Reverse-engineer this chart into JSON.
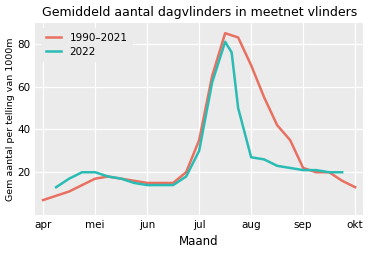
{
  "title": "Gemiddeld aantal dagvlinders in meetnet vlinders",
  "xlabel": "Maand",
  "ylabel": "Gem aantal per telling van 1000m",
  "x_labels": [
    "apr",
    "mei",
    "jun",
    "jul",
    "aug",
    "sep",
    "okt"
  ],
  "x_ticks": [
    0,
    2,
    4,
    6,
    8,
    10,
    12
  ],
  "ylim": [
    0,
    90
  ],
  "yticks": [
    20,
    40,
    60,
    80
  ],
  "background_color": "#ebebeb",
  "line_1990_color": "#E87060",
  "line_2022_color": "#2ABCB4",
  "line_width": 1.8,
  "series_1990": {
    "label": "1990–2021",
    "x": [
      0,
      0.5,
      1,
      1.5,
      2,
      2.5,
      3,
      3.5,
      4,
      4.5,
      5,
      5.5,
      6,
      6.5,
      7,
      7.5,
      8,
      8.5,
      9,
      9.5,
      10,
      10.5,
      11,
      11.5,
      12
    ],
    "y": [
      7,
      9,
      11,
      14,
      17,
      18,
      17,
      16,
      15,
      15,
      15,
      20,
      35,
      65,
      85,
      83,
      70,
      55,
      42,
      35,
      22,
      20,
      20,
      16,
      13
    ]
  },
  "series_2022": {
    "label": "2022",
    "x": [
      0.5,
      1,
      1.5,
      2,
      2.5,
      3,
      3.5,
      4,
      4.5,
      5,
      5.5,
      6,
      6.5,
      7,
      7.25,
      7.5,
      8,
      8.5,
      9,
      9.5,
      10,
      10.5,
      11,
      11.5
    ],
    "y": [
      13,
      17,
      20,
      20,
      18,
      17,
      15,
      14,
      14,
      14,
      18,
      30,
      62,
      81,
      76,
      50,
      27,
      26,
      23,
      22,
      21,
      21,
      20,
      20
    ]
  }
}
